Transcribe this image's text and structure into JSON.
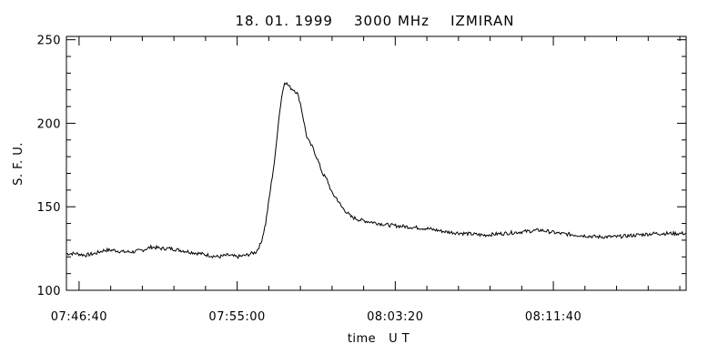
{
  "chart_data": {
    "type": "line",
    "title": "18. 01. 1999    3000 MHz    IZMIRAN",
    "xlabel": "time   U T",
    "ylabel": "S. F. U.",
    "x_unit": "UT time (hh:mm:ss)",
    "xlim": [
      "07:46:00",
      "08:18:40"
    ],
    "ylim": [
      100,
      252
    ],
    "x_ticks": [
      "07:46:40",
      "07:55:00",
      "08:03:20",
      "08:11:40"
    ],
    "y_ticks": [
      100,
      150,
      200,
      250
    ],
    "grid": false,
    "legend": "none",
    "colors": {
      "line": "#000000",
      "axes": "#000000",
      "background": "#ffffff"
    },
    "series": [
      {
        "x": [
          "07:46:00",
          "07:46:30",
          "07:47:00",
          "07:47:30",
          "07:48:00",
          "07:48:30",
          "07:49:00",
          "07:49:30",
          "07:50:00",
          "07:50:30",
          "07:51:00",
          "07:51:30",
          "07:52:00",
          "07:52:30",
          "07:53:00",
          "07:53:30",
          "07:54:00",
          "07:54:30",
          "07:55:00",
          "07:55:30",
          "07:56:00",
          "07:56:15",
          "07:56:30",
          "07:56:45",
          "07:57:00",
          "07:57:10",
          "07:57:20",
          "07:57:30",
          "07:57:40",
          "07:57:50",
          "07:58:00",
          "07:58:10",
          "07:58:20",
          "07:58:30",
          "07:58:40",
          "07:58:50",
          "07:59:00",
          "07:59:15",
          "07:59:30",
          "07:59:45",
          "08:00:00",
          "08:00:15",
          "08:00:30",
          "08:00:45",
          "08:01:00",
          "08:01:30",
          "08:02:00",
          "08:02:30",
          "08:03:00",
          "08:04:00",
          "08:05:00",
          "08:06:00",
          "08:07:00",
          "08:08:00",
          "08:09:00",
          "08:10:00",
          "08:11:00",
          "08:12:00",
          "08:13:00",
          "08:14:00",
          "08:15:00",
          "08:16:00",
          "08:17:00",
          "08:18:00",
          "08:18:40"
        ],
        "values": [
          122,
          122,
          121,
          122,
          124,
          124,
          123,
          123,
          124,
          126,
          125,
          125,
          124,
          123,
          122,
          121,
          120,
          121,
          120,
          121,
          123,
          128,
          140,
          160,
          180,
          200,
          215,
          225,
          223,
          221,
          220,
          218,
          212,
          202,
          192,
          188,
          185,
          178,
          170,
          166,
          158,
          155,
          150,
          147,
          144,
          142,
          141,
          140,
          139,
          138,
          137,
          135,
          134,
          133,
          134,
          135,
          136,
          134,
          133,
          132,
          132,
          133,
          134,
          134,
          134
        ]
      }
    ]
  }
}
